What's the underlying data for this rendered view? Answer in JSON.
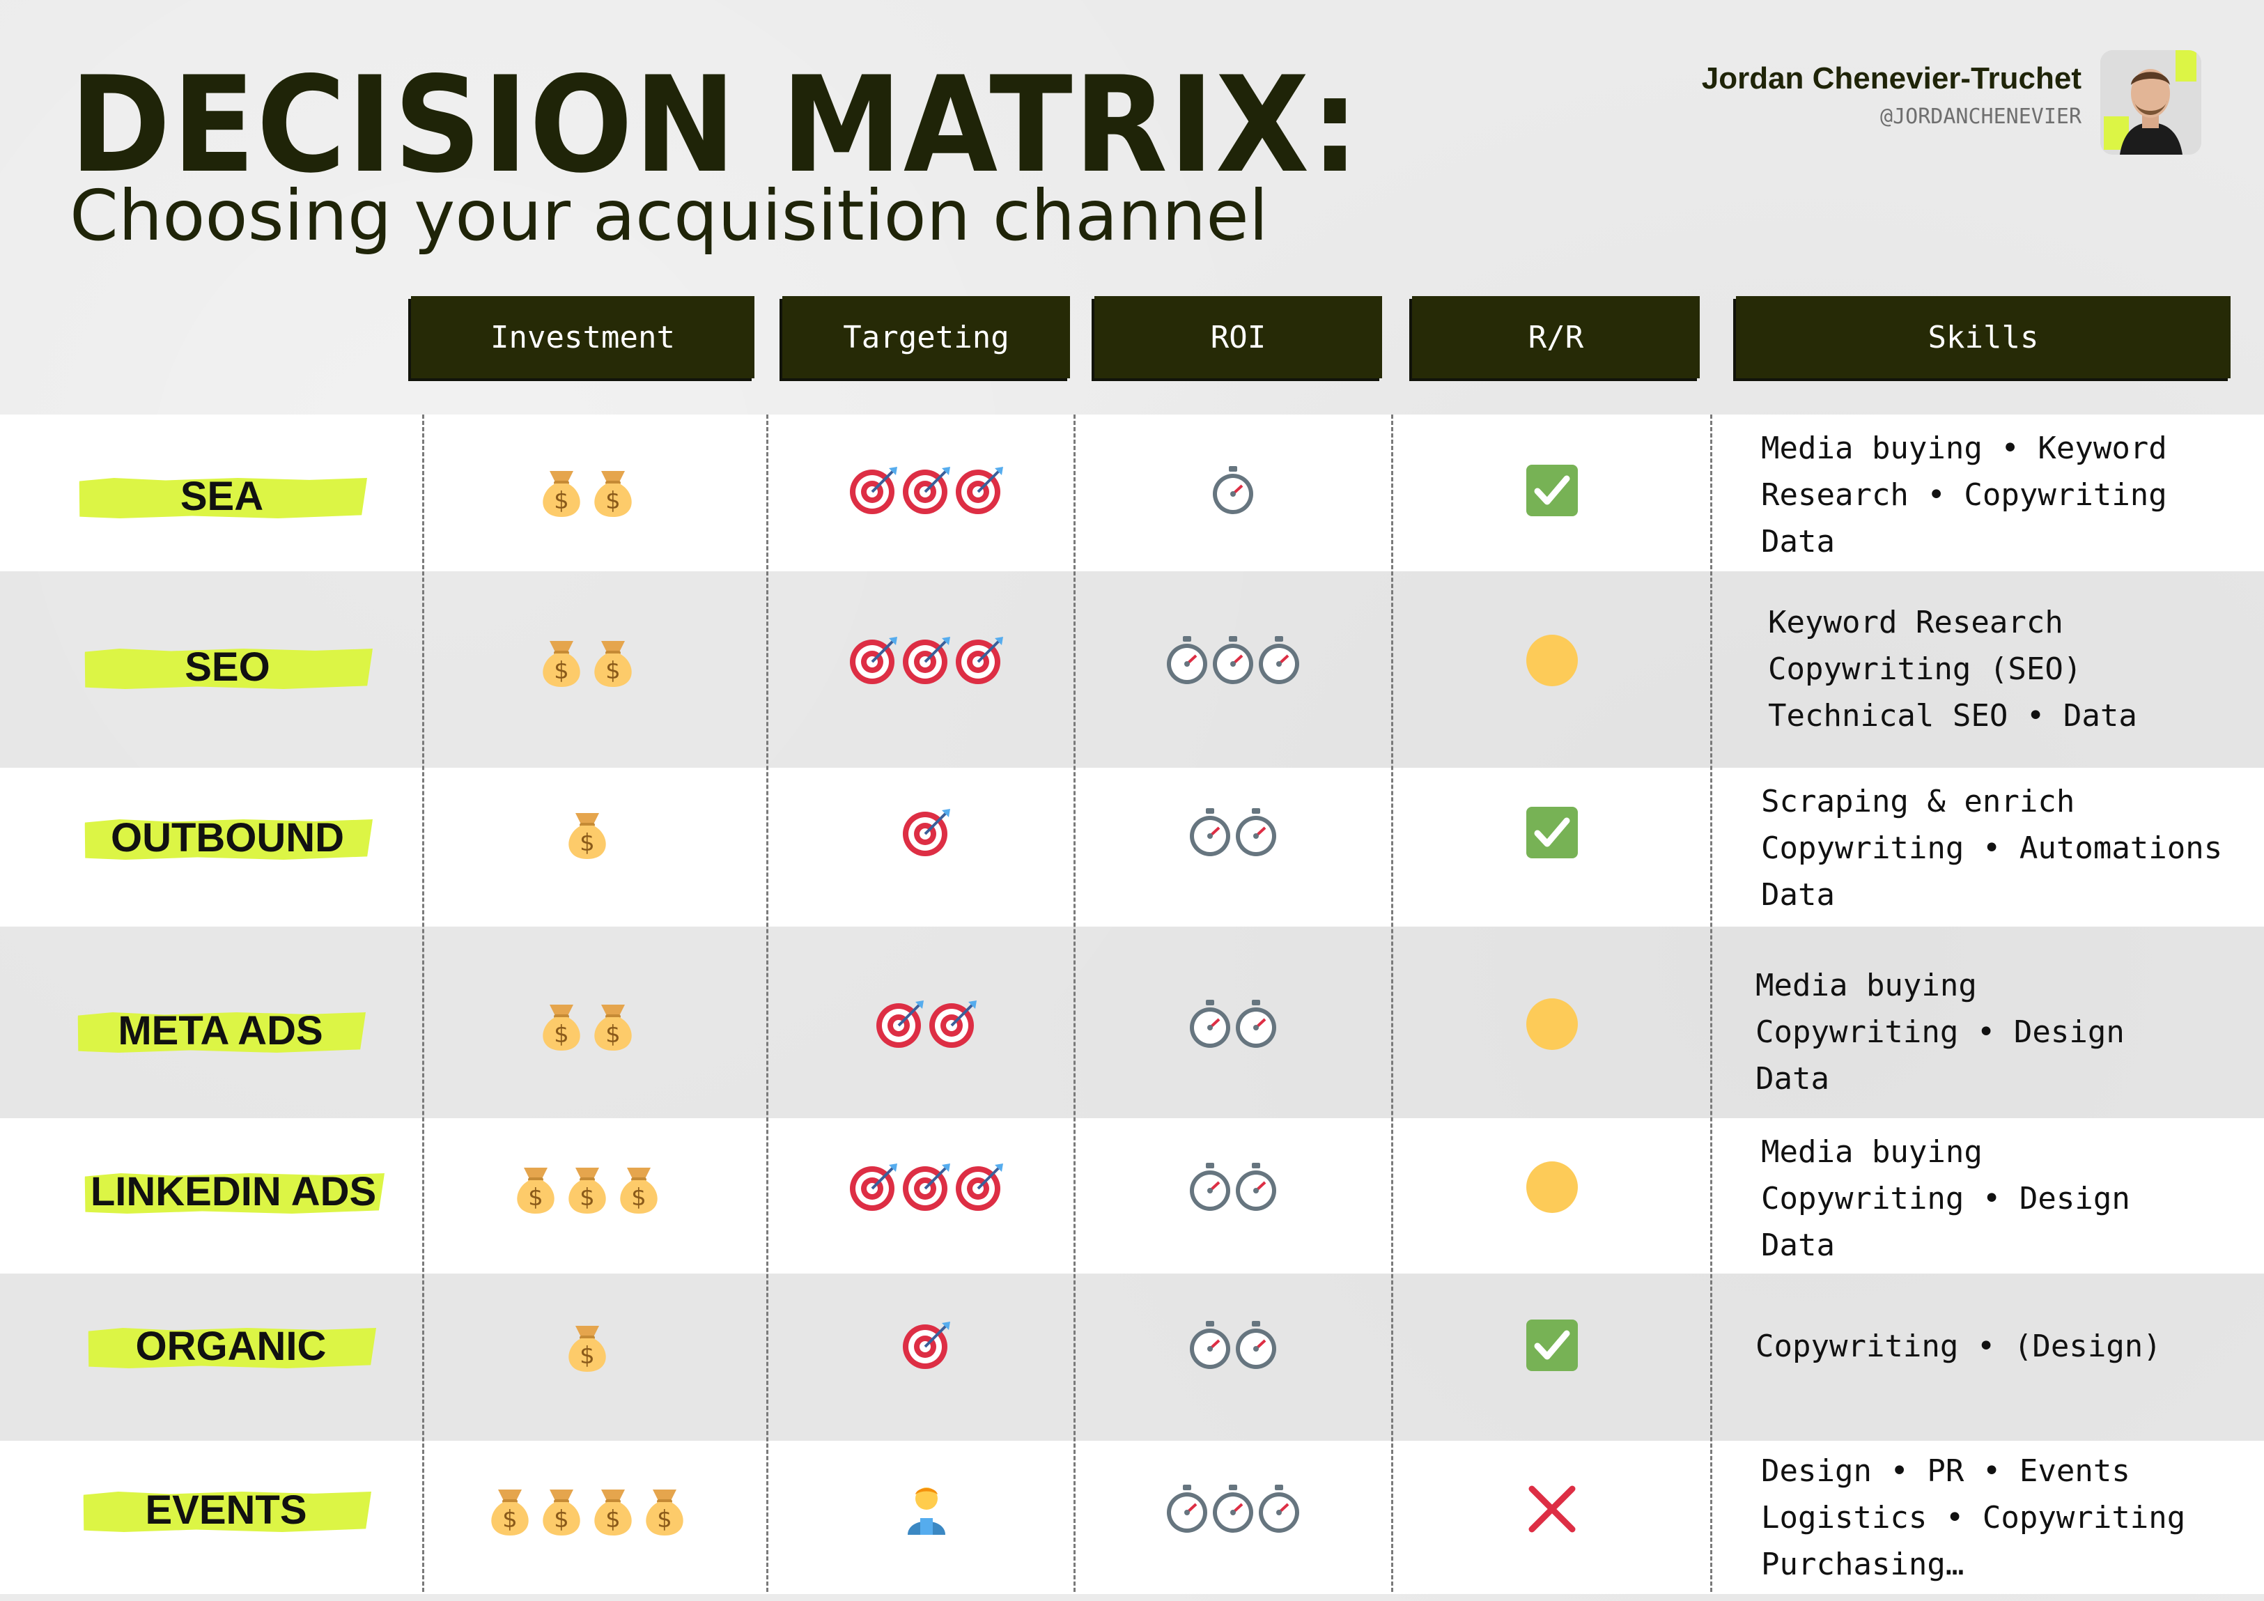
{
  "header": {
    "title": "DECISION MATRIX:",
    "subtitle": "Choosing your acquisition channel",
    "author_name": "Jordan Chenevier-Truchet",
    "author_handle": "@JORDANCHENEVIER"
  },
  "columns": [
    "Investment",
    "Targeting",
    "ROI",
    "R/R",
    "Skills"
  ],
  "rows": [
    {
      "channel": "SEA",
      "investment": 2,
      "targeting": 3,
      "roi": 1,
      "rr": "check",
      "skills": [
        "Media buying • Keyword",
        "Research • Copywriting",
        "Data"
      ]
    },
    {
      "channel": "SEO",
      "investment": 2,
      "targeting": 3,
      "roi": 3,
      "rr": "circle",
      "skills": [
        "Keyword Research",
        "Copywriting (SEO)",
        "Technical SEO • Data"
      ]
    },
    {
      "channel": "OUTBOUND",
      "investment": 1,
      "targeting": 1,
      "roi": 2,
      "rr": "check",
      "skills": [
        "Scraping & enrich",
        "Copywriting • Automations",
        "Data"
      ]
    },
    {
      "channel": "META ADS",
      "investment": 2,
      "targeting": 2,
      "roi": 2,
      "rr": "circle",
      "skills": [
        "Media buying",
        "Copywriting • Design",
        "Data"
      ]
    },
    {
      "channel": "LINKEDIN ADS",
      "investment": 3,
      "targeting": 3,
      "roi": 2,
      "rr": "circle",
      "skills": [
        "Media buying",
        "Copywriting • Design",
        "Data"
      ]
    },
    {
      "channel": "ORGANIC",
      "investment": 1,
      "targeting": 1,
      "roi": 2,
      "rr": "check",
      "skills": [
        "Copywriting • (Design)"
      ]
    },
    {
      "channel": "EVENTS",
      "investment": 4,
      "targeting": "person",
      "roi": 3,
      "rr": "cross",
      "skills": [
        "Design • PR • Events",
        "Logistics • Copywriting",
        "Purchasing…"
      ]
    }
  ],
  "icons": {
    "investment": "money-bag-icon",
    "targeting": "target-icon",
    "roi": "stopwatch-icon",
    "rr_check": "check-mark-icon",
    "rr_circle": "yellow-circle-icon",
    "rr_cross": "cross-mark-icon",
    "events_targeting": "farmer-person-icon"
  },
  "colors": {
    "header_bg": "#262a06",
    "highlight": "#dcf545",
    "title": "#1f2408",
    "check_green": "#77b255",
    "circle_yellow": "#fdcb58",
    "cross_red": "#dd2e44"
  }
}
